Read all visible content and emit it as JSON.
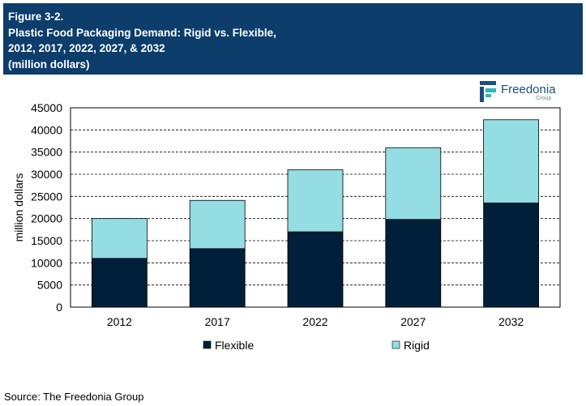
{
  "header": {
    "figure_label": "Figure 3-2.",
    "title_line1": "Plastic Food Packaging Demand: Rigid vs. Flexible,",
    "title_line2": "2012, 2017, 2022, 2027, & 2032",
    "title_line3": "(million dollars)"
  },
  "logo": {
    "name": "Freedonia",
    "group": "Group"
  },
  "colors": {
    "header_bg": "#0c3d6b",
    "flexible": "#001f3a",
    "rigid": "#93dde3",
    "logo_blue": "#1b4e7d",
    "logo_teal": "#2bb3c0"
  },
  "chart_data": {
    "type": "bar",
    "stacked": true,
    "categories": [
      "2012",
      "2017",
      "2022",
      "2027",
      "2032"
    ],
    "series": [
      {
        "name": "Flexible",
        "values": [
          11000,
          13200,
          17000,
          19800,
          23500
        ]
      },
      {
        "name": "Rigid",
        "values": [
          9000,
          10900,
          14000,
          16200,
          18800
        ]
      }
    ],
    "ylabel": "million dollars",
    "ylim": [
      0,
      45000
    ],
    "yticks": [
      0,
      5000,
      10000,
      15000,
      20000,
      25000,
      30000,
      35000,
      40000,
      45000
    ],
    "grid": true,
    "legend": "bottom"
  },
  "source": "Source: The Freedonia Group"
}
